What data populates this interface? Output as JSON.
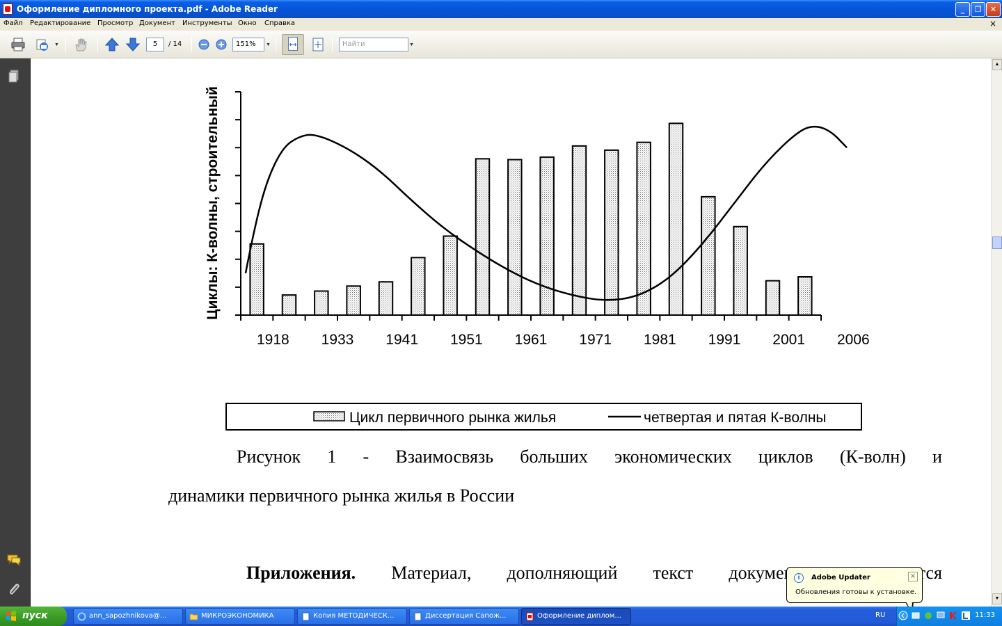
{
  "window": {
    "title": "Оформление дипломного проекта.pdf - Adobe Reader",
    "minimize_glyph": "_",
    "restore_glyph": "❐",
    "close_glyph": "✕"
  },
  "menu": {
    "items": [
      "Файл",
      "Редактирование",
      "Просмотр",
      "Документ",
      "Инструменты",
      "Окно",
      "Справка"
    ],
    "close_glyph": "×"
  },
  "toolbar": {
    "current_page": "5",
    "total_pages": "/ 14",
    "zoom": "151%",
    "search_placeholder": "Найти",
    "icons": [
      "print-icon",
      "email-icon",
      "hand-icon",
      "arrow-up-icon",
      "arrow-down-icon",
      "zoom-out-icon",
      "zoom-in-icon",
      "fit-width-icon",
      "fit-page-icon"
    ]
  },
  "document": {
    "caption_line1_words": [
      "Рисунок",
      "1",
      "-",
      "Взаимосвязь",
      "больших",
      "экономических",
      "циклов",
      "(К-волн)",
      "и"
    ],
    "caption_line2": "динамики первичного рынка жилья  в России",
    "appendix_bold": "Приложения.",
    "appendix_words": [
      "Материал,",
      "дополняющий",
      "текст",
      "документа,",
      "помещается"
    ]
  },
  "chart_data": {
    "type": "bar",
    "ylabel": "Циклы: К-волны, строительный",
    "xlabel": "",
    "x_tick_labels": [
      "1918",
      "1933",
      "1941",
      "1951",
      "1961",
      "1971",
      "1981",
      "1991",
      "2001",
      "2006"
    ],
    "ylim": [
      0,
      8
    ],
    "y_ticks": [
      0,
      1,
      2,
      3,
      4,
      5,
      6,
      7,
      8
    ],
    "series": [
      {
        "name": "Цикл первичного рынка жилья",
        "kind": "bar",
        "values": [
          2.55,
          0.72,
          0.86,
          1.04,
          1.19,
          2.06,
          2.83,
          5.6,
          5.57,
          5.66,
          6.06,
          5.91,
          6.19,
          6.87,
          4.24,
          3.17,
          1.23,
          1.37
        ]
      },
      {
        "name": "четвертая и пятая К-волны",
        "kind": "line",
        "points": [
          [
            0.15,
            1.5
          ],
          [
            0.4,
            3.0
          ],
          [
            0.8,
            4.8
          ],
          [
            1.3,
            6.0
          ],
          [
            1.8,
            6.4
          ],
          [
            2.3,
            6.5
          ],
          [
            3.3,
            6.0
          ],
          [
            4.3,
            5.2
          ],
          [
            5.3,
            4.1
          ],
          [
            6.3,
            3.1
          ],
          [
            7.3,
            2.3
          ],
          [
            8.3,
            1.6
          ],
          [
            9.3,
            1.05
          ],
          [
            10.3,
            0.7
          ],
          [
            11.3,
            0.5
          ],
          [
            12.3,
            0.65
          ],
          [
            13.3,
            1.3
          ],
          [
            14.3,
            2.5
          ],
          [
            15.3,
            4.0
          ],
          [
            16.3,
            5.5
          ],
          [
            17.3,
            6.6
          ],
          [
            17.8,
            6.8
          ],
          [
            18.3,
            6.6
          ],
          [
            18.8,
            6.0
          ]
        ]
      }
    ],
    "legend_position": "bottom",
    "grid": false
  },
  "balloon": {
    "title": "Adobe Updater",
    "text": "Обновления готовы к установке.",
    "close_glyph": "×"
  },
  "taskbar": {
    "start_label": "пуск",
    "tasks": [
      "ann_sapozhnikova@...",
      "МИКРОЭКОНОМИКА",
      "Копия МЕТОДИЧЕСК...",
      "Диссертация Сапож...",
      "Оформление диплом..."
    ],
    "language": "RU",
    "clock": "11:33"
  }
}
